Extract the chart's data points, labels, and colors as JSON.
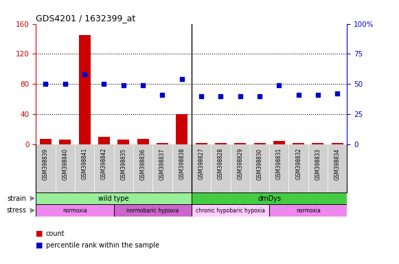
{
  "title": "GDS4201 / 1632399_at",
  "samples": [
    "GSM398839",
    "GSM398840",
    "GSM398841",
    "GSM398842",
    "GSM398835",
    "GSM398836",
    "GSM398837",
    "GSM398838",
    "GSM398827",
    "GSM398828",
    "GSM398829",
    "GSM398830",
    "GSM398831",
    "GSM398832",
    "GSM398833",
    "GSM398834"
  ],
  "counts": [
    7,
    6,
    145,
    10,
    6,
    7,
    2,
    40,
    2,
    2,
    2,
    2,
    4,
    2,
    2,
    2
  ],
  "percentile_ranks_pct": [
    50,
    50,
    58,
    50,
    49,
    49,
    41,
    54,
    40,
    40,
    40,
    40,
    49,
    41,
    41,
    42
  ],
  "bar_color": "#cc0000",
  "dot_color": "#0000cc",
  "left_ylim": [
    0,
    160
  ],
  "right_ylim": [
    0,
    100
  ],
  "left_yticks": [
    0,
    40,
    80,
    120,
    160
  ],
  "right_yticks": [
    0,
    25,
    50,
    75,
    100
  ],
  "right_yticklabels": [
    "0",
    "25",
    "50",
    "75",
    "100%"
  ],
  "strain_groups": [
    {
      "label": "wild type",
      "start": 0,
      "end": 8,
      "color": "#99ee99"
    },
    {
      "label": "dmDys",
      "start": 8,
      "end": 16,
      "color": "#44cc44"
    }
  ],
  "stress_groups": [
    {
      "label": "normoxia",
      "start": 0,
      "end": 4,
      "color": "#ee88ee"
    },
    {
      "label": "normobaric hypoxia",
      "start": 4,
      "end": 8,
      "color": "#cc66cc"
    },
    {
      "label": "chronic hypobaric hypoxia",
      "start": 8,
      "end": 12,
      "color": "#ffccff"
    },
    {
      "label": "normoxia",
      "start": 12,
      "end": 16,
      "color": "#ee88ee"
    }
  ],
  "bg_color": "#ffffff",
  "sample_bg_color": "#d0d0d0",
  "plot_bg_color": "#ffffff"
}
